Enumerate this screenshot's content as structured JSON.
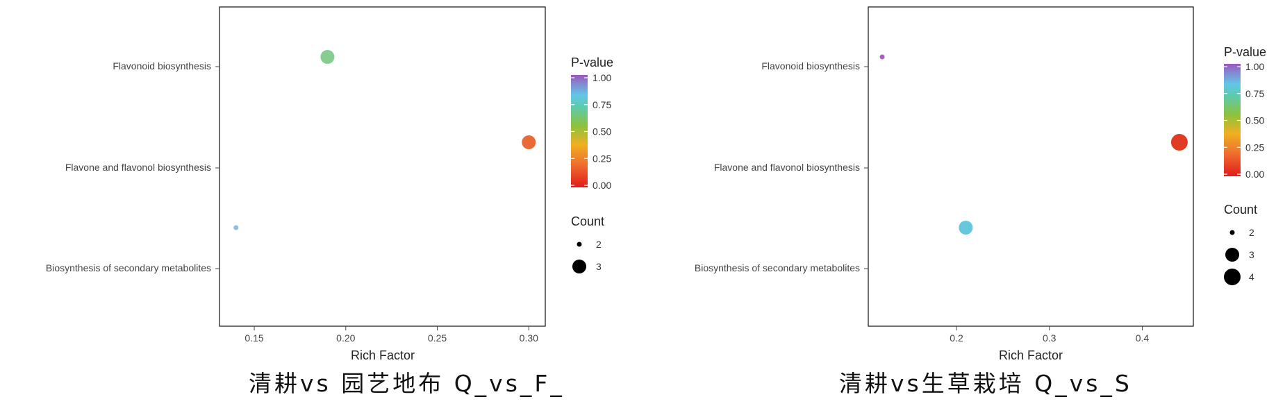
{
  "chart_data": [
    {
      "type": "scatter",
      "title": "",
      "xlabel": "Rich Factor",
      "ylabel": "",
      "xlim": [
        0.131,
        0.309
      ],
      "xticks": [
        "0.15",
        "0.20",
        "0.25",
        "0.30"
      ],
      "xtick_values": [
        0.15,
        0.2,
        0.25,
        0.3
      ],
      "categories": [
        "Flavonoid biosynthesis",
        "Flavone and flavonol biosynthesis",
        "Biosynthesis of secondary metabolites"
      ],
      "points": [
        {
          "pathway": "Flavonoid biosynthesis",
          "rich_factor": 0.19,
          "p_value": 0.55,
          "count": 3
        },
        {
          "pathway": "Flavone and flavonol biosynthesis",
          "rich_factor": 0.3,
          "p_value": 0.15,
          "count": 3
        },
        {
          "pathway": "Biosynthesis of secondary metabolites",
          "rich_factor": 0.14,
          "p_value": 0.8,
          "count": 2
        }
      ],
      "color_legend": {
        "title": "P-value",
        "ticks": [
          "1.00",
          "0.75",
          "0.50",
          "0.25",
          "0.00"
        ],
        "placement": "right"
      },
      "size_legend": {
        "title": "Count",
        "values": [
          2,
          3
        ]
      },
      "grid": false,
      "caption": "清耕vs 园艺地布 Q_vs_F_"
    },
    {
      "type": "scatter",
      "title": "",
      "xlabel": "Rich Factor",
      "ylabel": "",
      "xlim": [
        0.105,
        0.455
      ],
      "xticks": [
        "0.2",
        "0.3",
        "0.4"
      ],
      "xtick_values": [
        0.2,
        0.3,
        0.4
      ],
      "categories": [
        "Flavonoid biosynthesis",
        "Flavone and flavonol biosynthesis",
        "Biosynthesis of secondary metabolites"
      ],
      "points": [
        {
          "pathway": "Flavonoid biosynthesis",
          "rich_factor": 0.12,
          "p_value": 1.0,
          "count": 2
        },
        {
          "pathway": "Flavone and flavonol biosynthesis",
          "rich_factor": 0.44,
          "p_value": 0.03,
          "count": 4
        },
        {
          "pathway": "Biosynthesis of secondary metabolites",
          "rich_factor": 0.21,
          "p_value": 0.75,
          "count": 3
        }
      ],
      "color_legend": {
        "title": "P-value",
        "ticks": [
          "1.00",
          "0.75",
          "0.50",
          "0.25",
          "0.00"
        ],
        "placement": "right"
      },
      "size_legend": {
        "title": "Count",
        "values": [
          2,
          3,
          4
        ]
      },
      "grid": false,
      "caption": "清耕vs生草栽培 Q_vs_S"
    }
  ],
  "colors": {
    "panel_border": "#222222",
    "gradient_stops": [
      "#e11b1b",
      "#ef6d2e",
      "#efb020",
      "#8cc23e",
      "#5ccbb0",
      "#62c7e6",
      "#9c58c0"
    ],
    "point_colors_left": [
      "#7fca8a",
      "#e8622e",
      "#8db7e6"
    ],
    "point_colors_right": [
      "#a455bd",
      "#dd3217",
      "#5ec5dc"
    ]
  }
}
